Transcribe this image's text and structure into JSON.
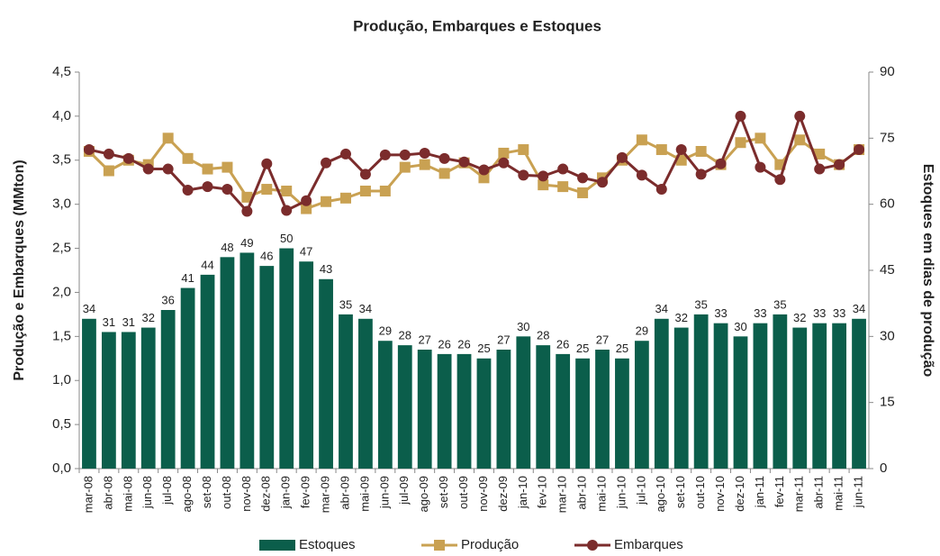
{
  "chart_data": {
    "type": "bar_line_combo",
    "title": "Produção, Embarques e Estoques",
    "y_label": "Produção e Embarques (MMton)",
    "y2_label": "Estoques em dias de produção",
    "categories": [
      "mar-08",
      "abr-08",
      "mai-08",
      "jun-08",
      "jul-08",
      "ago-08",
      "set-08",
      "out-08",
      "nov-08",
      "dez-08",
      "jan-09",
      "fev-09",
      "mar-09",
      "abr-09",
      "mai-09",
      "jun-09",
      "jul-09",
      "ago-09",
      "set-09",
      "out-09",
      "nov-09",
      "dez-09",
      "jan-10",
      "fev-10",
      "mar-10",
      "abr-10",
      "mai-10",
      "jun-10",
      "jul-10",
      "ago-10",
      "set-10",
      "out-10",
      "nov-10",
      "dez-10",
      "jan-11",
      "fev-11",
      "mar-11",
      "abr-11",
      "mai-11",
      "jun-11"
    ],
    "series": [
      {
        "name": "Estoques",
        "color": "#0b5e4b",
        "type": "bar",
        "axis": "y2",
        "values": [
          34,
          31,
          31,
          32,
          36,
          41,
          44,
          48,
          49,
          46,
          50,
          47,
          43,
          35,
          34,
          29,
          28,
          27,
          26,
          26,
          25,
          27,
          30,
          28,
          26,
          25,
          27,
          25,
          29,
          34,
          32,
          35,
          33,
          30,
          33,
          35,
          32,
          33,
          33,
          34
        ]
      },
      {
        "name": "Produção",
        "color": "#c9a152",
        "type": "line",
        "marker": "square",
        "values": [
          3.6,
          3.38,
          3.5,
          3.45,
          3.75,
          3.52,
          3.4,
          3.42,
          3.08,
          3.17,
          3.15,
          2.95,
          3.03,
          3.07,
          3.15,
          3.15,
          3.42,
          3.45,
          3.35,
          3.47,
          3.3,
          3.58,
          3.62,
          3.22,
          3.2,
          3.13,
          3.3,
          3.5,
          3.73,
          3.62,
          3.5,
          3.6,
          3.45,
          3.7,
          3.75,
          3.45,
          3.73,
          3.57,
          3.45,
          3.62
        ]
      },
      {
        "name": "Embarques",
        "color": "#7b2c2c",
        "type": "line",
        "marker": "circle",
        "values": [
          3.62,
          3.57,
          3.52,
          3.4,
          3.4,
          3.16,
          3.2,
          3.17,
          2.92,
          3.46,
          2.93,
          3.04,
          3.47,
          3.57,
          3.34,
          3.56,
          3.56,
          3.58,
          3.52,
          3.48,
          3.39,
          3.47,
          3.33,
          3.32,
          3.4,
          3.3,
          3.25,
          3.53,
          3.33,
          3.17,
          3.62,
          3.34,
          3.46,
          4.0,
          3.42,
          3.28,
          4.0,
          3.4,
          3.45,
          3.62
        ]
      }
    ],
    "ylim": [
      0,
      4.5
    ],
    "yticks": [
      {
        "value": 0,
        "label": "0,0"
      },
      {
        "value": 0.5,
        "label": "0,5"
      },
      {
        "value": 1,
        "label": "1,0"
      },
      {
        "value": 1.5,
        "label": "1,5"
      },
      {
        "value": 2,
        "label": "2,0"
      },
      {
        "value": 2.5,
        "label": "2,5"
      },
      {
        "value": 3,
        "label": "3,0"
      },
      {
        "value": 3.5,
        "label": "3,5"
      },
      {
        "value": 4,
        "label": "4,0"
      },
      {
        "value": 4.5,
        "label": "4,5"
      }
    ],
    "y2lim": [
      0,
      90
    ],
    "y2ticks": [
      0,
      15,
      30,
      45,
      60,
      75,
      90
    ]
  }
}
